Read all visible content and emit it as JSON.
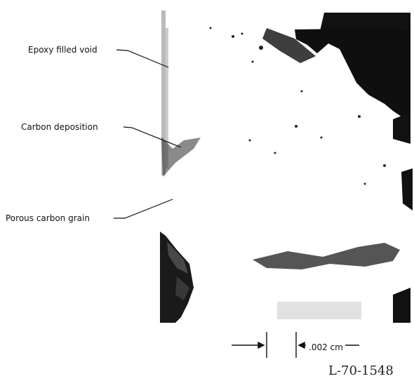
{
  "labels": {
    "epoxy": "Epoxy filled void",
    "carbon": "Carbon deposition",
    "porous": "Porous carbon grain"
  },
  "scale_bar": {
    "text": ".002 cm"
  },
  "figure_id": "L-70-1548"
}
